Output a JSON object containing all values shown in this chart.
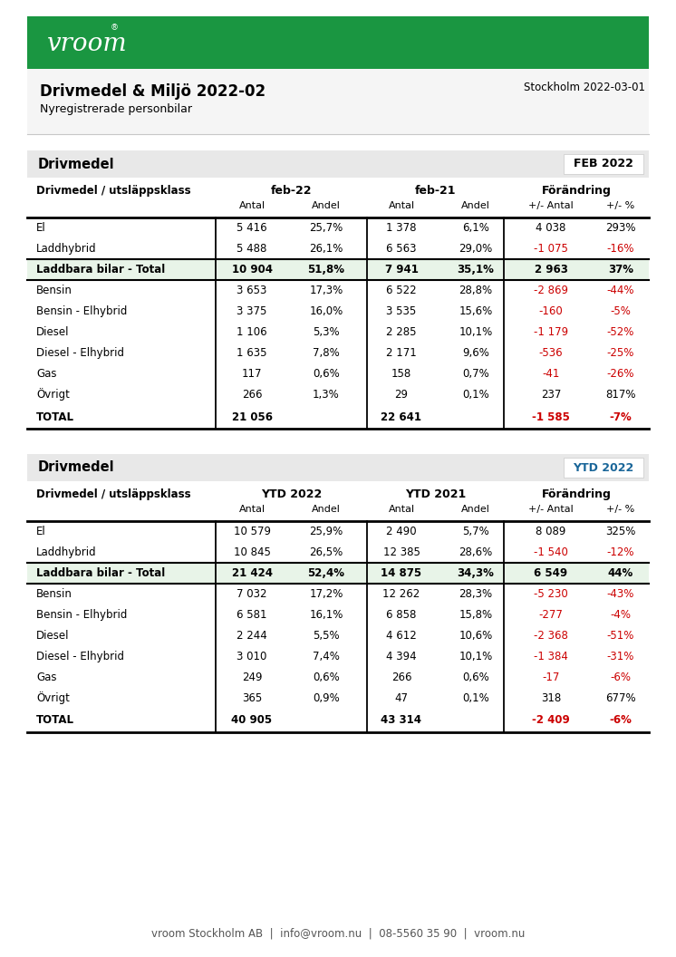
{
  "green_color": "#1a9641",
  "red_color": "#cc0000",
  "black": "#000000",
  "white": "#ffffff",
  "light_gray": "#e8e8e8",
  "med_gray": "#c8c8c8",
  "green_row": "#e8f4e8",
  "ytd_blue": "#1a6699",
  "info_bg": "#f5f5f5",
  "date_text": "Stockholm 2022-03-01",
  "title": "Drivmedel & Miljö 2022-02",
  "subtitle": "Nyregistrerade personbilar",
  "footer": "vroom Stockholm AB  |  info@vroom.nu  |  08-5560 35 90  |  vroom.nu",
  "table1_header": "Drivmedel",
  "table1_badge": "FEB 2022",
  "table2_header": "Drivmedel",
  "table2_badge": "YTD 2022",
  "table1": {
    "group1_col": "feb-22",
    "group2_col": "feb-21",
    "group3_col": "Förändring",
    "rows": [
      {
        "label": "El",
        "a22": "5 416",
        "p22": "25,7%",
        "a21": "1 378",
        "p21": "6,1%",
        "da": "4 038",
        "dp": "293%",
        "da_red": false,
        "dp_red": false,
        "bold": false,
        "green_bg": false
      },
      {
        "label": "Laddhybrid",
        "a22": "5 488",
        "p22": "26,1%",
        "a21": "6 563",
        "p21": "29,0%",
        "da": "-1 075",
        "dp": "-16%",
        "da_red": true,
        "dp_red": true,
        "bold": false,
        "green_bg": false
      },
      {
        "label": "Laddbara bilar - Total",
        "a22": "10 904",
        "p22": "51,8%",
        "a21": "7 941",
        "p21": "35,1%",
        "da": "2 963",
        "dp": "37%",
        "da_red": false,
        "dp_red": false,
        "bold": true,
        "green_bg": true
      },
      {
        "label": "Bensin",
        "a22": "3 653",
        "p22": "17,3%",
        "a21": "6 522",
        "p21": "28,8%",
        "da": "-2 869",
        "dp": "-44%",
        "da_red": true,
        "dp_red": true,
        "bold": false,
        "green_bg": false
      },
      {
        "label": "Bensin - Elhybrid",
        "a22": "3 375",
        "p22": "16,0%",
        "a21": "3 535",
        "p21": "15,6%",
        "da": "-160",
        "dp": "-5%",
        "da_red": true,
        "dp_red": true,
        "bold": false,
        "green_bg": false
      },
      {
        "label": "Diesel",
        "a22": "1 106",
        "p22": "5,3%",
        "a21": "2 285",
        "p21": "10,1%",
        "da": "-1 179",
        "dp": "-52%",
        "da_red": true,
        "dp_red": true,
        "bold": false,
        "green_bg": false
      },
      {
        "label": "Diesel - Elhybrid",
        "a22": "1 635",
        "p22": "7,8%",
        "a21": "2 171",
        "p21": "9,6%",
        "da": "-536",
        "dp": "-25%",
        "da_red": true,
        "dp_red": true,
        "bold": false,
        "green_bg": false
      },
      {
        "label": "Gas",
        "a22": "117",
        "p22": "0,6%",
        "a21": "158",
        "p21": "0,7%",
        "da": "-41",
        "dp": "-26%",
        "da_red": true,
        "dp_red": true,
        "bold": false,
        "green_bg": false
      },
      {
        "label": "Övrigt",
        "a22": "266",
        "p22": "1,3%",
        "a21": "29",
        "p21": "0,1%",
        "da": "237",
        "dp": "817%",
        "da_red": false,
        "dp_red": false,
        "bold": false,
        "green_bg": false
      },
      {
        "label": "TOTAL",
        "a22": "21 056",
        "p22": "",
        "a21": "22 641",
        "p21": "",
        "da": "-1 585",
        "dp": "-7%",
        "da_red": true,
        "dp_red": true,
        "bold": true,
        "green_bg": false
      }
    ]
  },
  "table2": {
    "group1_col": "YTD 2022",
    "group2_col": "YTD 2021",
    "group3_col": "Förändring",
    "rows": [
      {
        "label": "El",
        "a22": "10 579",
        "p22": "25,9%",
        "a21": "2 490",
        "p21": "5,7%",
        "da": "8 089",
        "dp": "325%",
        "da_red": false,
        "dp_red": false,
        "bold": false,
        "green_bg": false
      },
      {
        "label": "Laddhybrid",
        "a22": "10 845",
        "p22": "26,5%",
        "a21": "12 385",
        "p21": "28,6%",
        "da": "-1 540",
        "dp": "-12%",
        "da_red": true,
        "dp_red": true,
        "bold": false,
        "green_bg": false
      },
      {
        "label": "Laddbara bilar - Total",
        "a22": "21 424",
        "p22": "52,4%",
        "a21": "14 875",
        "p21": "34,3%",
        "da": "6 549",
        "dp": "44%",
        "da_red": false,
        "dp_red": false,
        "bold": true,
        "green_bg": true
      },
      {
        "label": "Bensin",
        "a22": "7 032",
        "p22": "17,2%",
        "a21": "12 262",
        "p21": "28,3%",
        "da": "-5 230",
        "dp": "-43%",
        "da_red": true,
        "dp_red": true,
        "bold": false,
        "green_bg": false
      },
      {
        "label": "Bensin - Elhybrid",
        "a22": "6 581",
        "p22": "16,1%",
        "a21": "6 858",
        "p21": "15,8%",
        "da": "-277",
        "dp": "-4%",
        "da_red": true,
        "dp_red": true,
        "bold": false,
        "green_bg": false
      },
      {
        "label": "Diesel",
        "a22": "2 244",
        "p22": "5,5%",
        "a21": "4 612",
        "p21": "10,6%",
        "da": "-2 368",
        "dp": "-51%",
        "da_red": true,
        "dp_red": true,
        "bold": false,
        "green_bg": false
      },
      {
        "label": "Diesel - Elhybrid",
        "a22": "3 010",
        "p22": "7,4%",
        "a21": "4 394",
        "p21": "10,1%",
        "da": "-1 384",
        "dp": "-31%",
        "da_red": true,
        "dp_red": true,
        "bold": false,
        "green_bg": false
      },
      {
        "label": "Gas",
        "a22": "249",
        "p22": "0,6%",
        "a21": "266",
        "p21": "0,6%",
        "da": "-17",
        "dp": "-6%",
        "da_red": true,
        "dp_red": true,
        "bold": false,
        "green_bg": false
      },
      {
        "label": "Övrigt",
        "a22": "365",
        "p22": "0,9%",
        "a21": "47",
        "p21": "0,1%",
        "da": "318",
        "dp": "677%",
        "da_red": false,
        "dp_red": false,
        "bold": false,
        "green_bg": false
      },
      {
        "label": "TOTAL",
        "a22": "40 905",
        "p22": "",
        "a21": "43 314",
        "p21": "",
        "da": "-2 409",
        "dp": "-6%",
        "da_red": true,
        "dp_red": true,
        "bold": true,
        "green_bg": false
      }
    ]
  }
}
